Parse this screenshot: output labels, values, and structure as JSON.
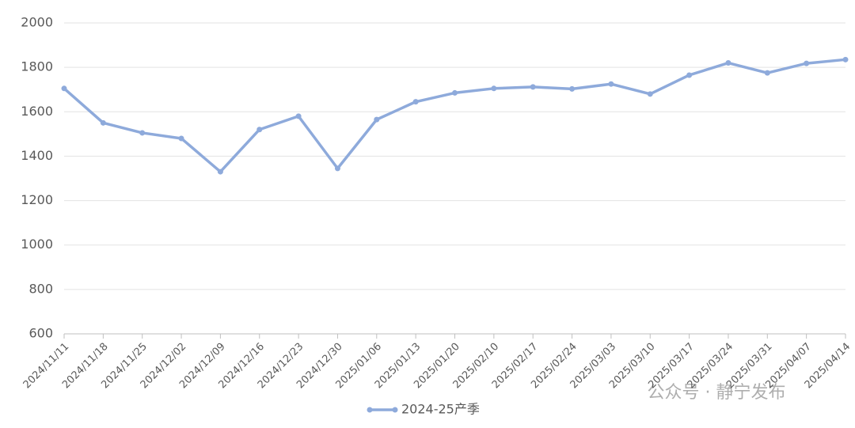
{
  "chart_data": {
    "type": "line",
    "categories": [
      "2024/11/11",
      "2024/11/18",
      "2024/11/25",
      "2024/12/02",
      "2024/12/09",
      "2024/12/16",
      "2024/12/23",
      "2024/12/30",
      "2025/01/06",
      "2025/01/13",
      "2025/01/20",
      "2025/02/10",
      "2025/02/17",
      "2025/02/24",
      "2025/03/03",
      "2025/03/10",
      "2025/03/17",
      "2025/03/24",
      "2025/03/31",
      "2025/04/07",
      "2025/04/14"
    ],
    "series": [
      {
        "name": "2024-25产季",
        "color": "#8eaadb",
        "values": [
          1705,
          1550,
          1505,
          1480,
          1330,
          1520,
          1580,
          1345,
          1565,
          1645,
          1685,
          1705,
          1712,
          1703,
          1725,
          1680,
          1765,
          1820,
          1775,
          1818,
          1835
        ]
      }
    ],
    "ylim": [
      600,
      2000
    ],
    "yticks": [
      600,
      800,
      1000,
      1200,
      1400,
      1600,
      1800,
      2000
    ],
    "grid": true,
    "legend": "bottom",
    "watermark": "公众号 · 静宁发布"
  }
}
